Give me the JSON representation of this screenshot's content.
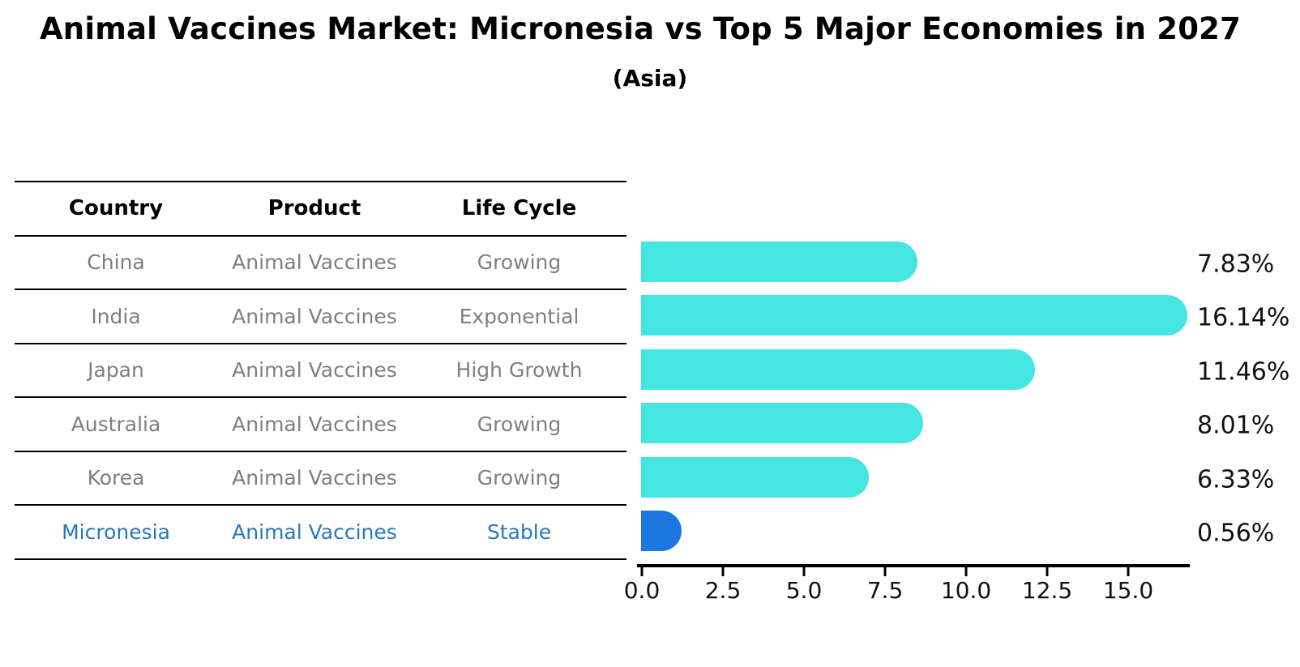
{
  "title": "Animal Vaccines Market: Micronesia vs Top 5 Major Economies in 2027",
  "subtitle": "(Asia)",
  "table": {
    "headers": [
      "Country",
      "Product",
      "Life Cycle"
    ],
    "rows": [
      {
        "country": "China",
        "product": "Animal Vaccines",
        "life_cycle": "Growing",
        "highlighted": false
      },
      {
        "country": "India",
        "product": "Animal Vaccines",
        "life_cycle": "Exponential",
        "highlighted": false
      },
      {
        "country": "Japan",
        "product": "Animal Vaccines",
        "life_cycle": "High Growth",
        "highlighted": false
      },
      {
        "country": "Australia",
        "product": "Animal Vaccines",
        "life_cycle": "Growing",
        "highlighted": false
      },
      {
        "country": "Korea",
        "product": "Animal Vaccines",
        "life_cycle": "Growing",
        "highlighted": false
      },
      {
        "country": "Micronesia",
        "product": "Animal Vaccines",
        "life_cycle": "Stable",
        "highlighted": true
      }
    ]
  },
  "chart_data": {
    "type": "bar",
    "orientation": "horizontal",
    "title": "Animal Vaccines Market: Micronesia vs Top 5 Major Economies in 2027",
    "subtitle": "(Asia)",
    "categories": [
      "China",
      "India",
      "Japan",
      "Australia",
      "Korea",
      "Micronesia"
    ],
    "values": [
      7.83,
      16.14,
      11.46,
      8.01,
      6.33,
      0.56
    ],
    "value_labels": [
      "7.83%",
      "16.14%",
      "11.46%",
      "8.01%",
      "6.33%",
      "0.56%"
    ],
    "highlight_index": 5,
    "bar_color_default": "#45e6e2",
    "bar_color_highlight": "#1c77e3",
    "x_ticks": [
      0,
      2.5,
      5,
      7.5,
      10,
      12.5,
      15
    ],
    "x_tick_labels": [
      "0.0",
      "2.5",
      "5.0",
      "7.5",
      "10.0",
      "12.5",
      "15.0"
    ],
    "xlim": [
      0,
      17.1
    ],
    "xlabel": "",
    "ylabel": "",
    "grid": false,
    "legend_position": "none"
  },
  "colors": {
    "bar_cyan": "#45e6e2",
    "bar_blue": "#1c77e3",
    "row_text_gray": "#7f7f7f",
    "highlight_text_blue": "#2878be",
    "line_black": "#000000",
    "background": "#ffffff"
  }
}
